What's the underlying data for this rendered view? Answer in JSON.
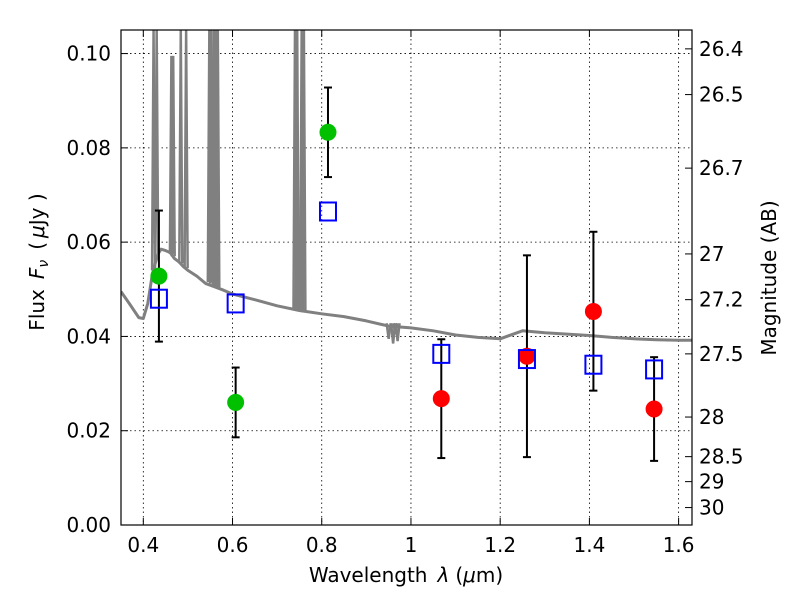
{
  "chart_data": {
    "type": "scatter",
    "xlabel": "Wavelength",
    "xlabel_symbol": "λ",
    "xlabel_unit_open": "(",
    "xlabel_unit_mu": "μ",
    "xlabel_unit_rest": "m)",
    "ylabel": "Flux",
    "ylabel_symbol": "F",
    "ylabel_subscript": "ν",
    "ylabel_unit_open": "(",
    "ylabel_unit_mu": "μ",
    "ylabel_unit_rest": "Jy )",
    "y2label": "Magnitude (AB)",
    "xlim": [
      0.35,
      1.63
    ],
    "ylim": [
      0.0,
      0.105
    ],
    "grid": true,
    "x_ticks": [
      {
        "value": 0.4,
        "label": "0.4"
      },
      {
        "value": 0.6,
        "label": "0.6"
      },
      {
        "value": 0.8,
        "label": "0.8"
      },
      {
        "value": 1.0,
        "label": "1"
      },
      {
        "value": 1.2,
        "label": "1.2"
      },
      {
        "value": 1.4,
        "label": "1.4"
      },
      {
        "value": 1.6,
        "label": "1.6"
      }
    ],
    "y_ticks": [
      {
        "value": 0.0,
        "label": "0.00"
      },
      {
        "value": 0.02,
        "label": "0.02"
      },
      {
        "value": 0.04,
        "label": "0.04"
      },
      {
        "value": 0.06,
        "label": "0.06"
      },
      {
        "value": 0.08,
        "label": "0.08"
      },
      {
        "value": 0.1,
        "label": "0.10"
      }
    ],
    "y2_ticks": [
      {
        "flux": 0.101,
        "label": "26.4"
      },
      {
        "flux": 0.0913,
        "label": "26.5"
      },
      {
        "flux": 0.0757,
        "label": "26.7"
      },
      {
        "flux": 0.0575,
        "label": "27"
      },
      {
        "flux": 0.0478,
        "label": "27.2"
      },
      {
        "flux": 0.0363,
        "label": "27.5"
      },
      {
        "flux": 0.0229,
        "label": "28"
      },
      {
        "flux": 0.0145,
        "label": "28.5"
      },
      {
        "flux": 0.0092,
        "label": "29"
      },
      {
        "flux": 0.0037,
        "label": "30"
      }
    ],
    "series": [
      {
        "name": "model-spectrum",
        "kind": "line",
        "color": "#808080",
        "x": [
          0.35,
          0.37,
          0.39,
          0.4,
          0.41,
          0.42,
          0.425,
          0.43,
          0.435,
          0.44,
          0.45,
          0.46,
          0.47,
          0.48,
          0.49,
          0.5,
          0.52,
          0.54,
          0.56,
          0.58,
          0.6,
          0.65,
          0.7,
          0.75,
          0.8,
          0.85,
          0.9,
          0.95,
          1.0,
          1.05,
          1.1,
          1.15,
          1.2,
          1.25,
          1.3,
          1.35,
          1.4,
          1.45,
          1.5,
          1.55,
          1.6,
          1.63
        ],
        "y": [
          0.0495,
          0.0468,
          0.044,
          0.0438,
          0.047,
          0.053,
          0.055,
          0.0565,
          0.0578,
          0.0585,
          0.0582,
          0.0578,
          0.0565,
          0.0558,
          0.0548,
          0.054,
          0.0528,
          0.0512,
          0.0505,
          0.0498,
          0.049,
          0.0478,
          0.0465,
          0.0455,
          0.0448,
          0.0442,
          0.0433,
          0.0422,
          0.0418,
          0.0412,
          0.0403,
          0.0398,
          0.0395,
          0.0412,
          0.0408,
          0.0405,
          0.0402,
          0.0398,
          0.0395,
          0.0393,
          0.0392,
          0.0392
        ]
      },
      {
        "name": "model-spectrum-lines",
        "kind": "spikes",
        "color": "#808080",
        "lines": [
          {
            "x": 0.423,
            "base": 0.054,
            "top": 0.105
          },
          {
            "x": 0.43,
            "base": 0.0565,
            "top": 0.105
          },
          {
            "x": 0.463,
            "base": 0.0575,
            "top": 0.0995
          },
          {
            "x": 0.467,
            "base": 0.057,
            "top": 0.0995
          },
          {
            "x": 0.484,
            "base": 0.0555,
            "top": 0.105
          },
          {
            "x": 0.496,
            "base": 0.0545,
            "top": 0.105
          },
          {
            "x": 0.548,
            "base": 0.0515,
            "top": 0.105
          },
          {
            "x": 0.553,
            "base": 0.0512,
            "top": 0.105
          },
          {
            "x": 0.559,
            "base": 0.0508,
            "top": 0.105
          },
          {
            "x": 0.563,
            "base": 0.0506,
            "top": 0.105
          },
          {
            "x": 0.567,
            "base": 0.0504,
            "top": 0.105
          },
          {
            "x": 0.74,
            "base": 0.0455,
            "top": 0.105
          },
          {
            "x": 0.745,
            "base": 0.0454,
            "top": 0.105
          },
          {
            "x": 0.755,
            "base": 0.0452,
            "top": 0.105
          },
          {
            "x": 0.76,
            "base": 0.0451,
            "top": 0.105
          }
        ],
        "dips": [
          {
            "x": 0.95,
            "depth": 0.0395
          },
          {
            "x": 0.96,
            "depth": 0.0385
          },
          {
            "x": 0.965,
            "depth": 0.0405
          },
          {
            "x": 0.97,
            "depth": 0.039
          }
        ]
      },
      {
        "name": "green-points",
        "kind": "errorbar-circle",
        "color": "#00c000",
        "points": [
          {
            "x": 0.435,
            "y": 0.0528,
            "lo": 0.0389,
            "hi": 0.0667
          },
          {
            "x": 0.607,
            "y": 0.026,
            "lo": 0.0186,
            "hi": 0.0334
          },
          {
            "x": 0.814,
            "y": 0.0833,
            "lo": 0.0738,
            "hi": 0.0928
          }
        ]
      },
      {
        "name": "red-points",
        "kind": "errorbar-circle",
        "color": "#ff0000",
        "points": [
          {
            "x": 1.068,
            "y": 0.0268,
            "lo": 0.0142,
            "hi": 0.0394
          },
          {
            "x": 1.26,
            "y": 0.0358,
            "lo": 0.0144,
            "hi": 0.0572
          },
          {
            "x": 1.409,
            "y": 0.0453,
            "lo": 0.0285,
            "hi": 0.0622
          },
          {
            "x": 1.545,
            "y": 0.0246,
            "lo": 0.0136,
            "hi": 0.0356
          }
        ]
      },
      {
        "name": "blue-squares",
        "kind": "open-square",
        "color": "#0000ff",
        "points": [
          {
            "x": 0.435,
            "y": 0.048
          },
          {
            "x": 0.607,
            "y": 0.047
          },
          {
            "x": 0.814,
            "y": 0.0665
          },
          {
            "x": 1.068,
            "y": 0.0363
          },
          {
            "x": 1.26,
            "y": 0.0352
          },
          {
            "x": 1.409,
            "y": 0.034
          },
          {
            "x": 1.545,
            "y": 0.033
          }
        ]
      }
    ]
  }
}
